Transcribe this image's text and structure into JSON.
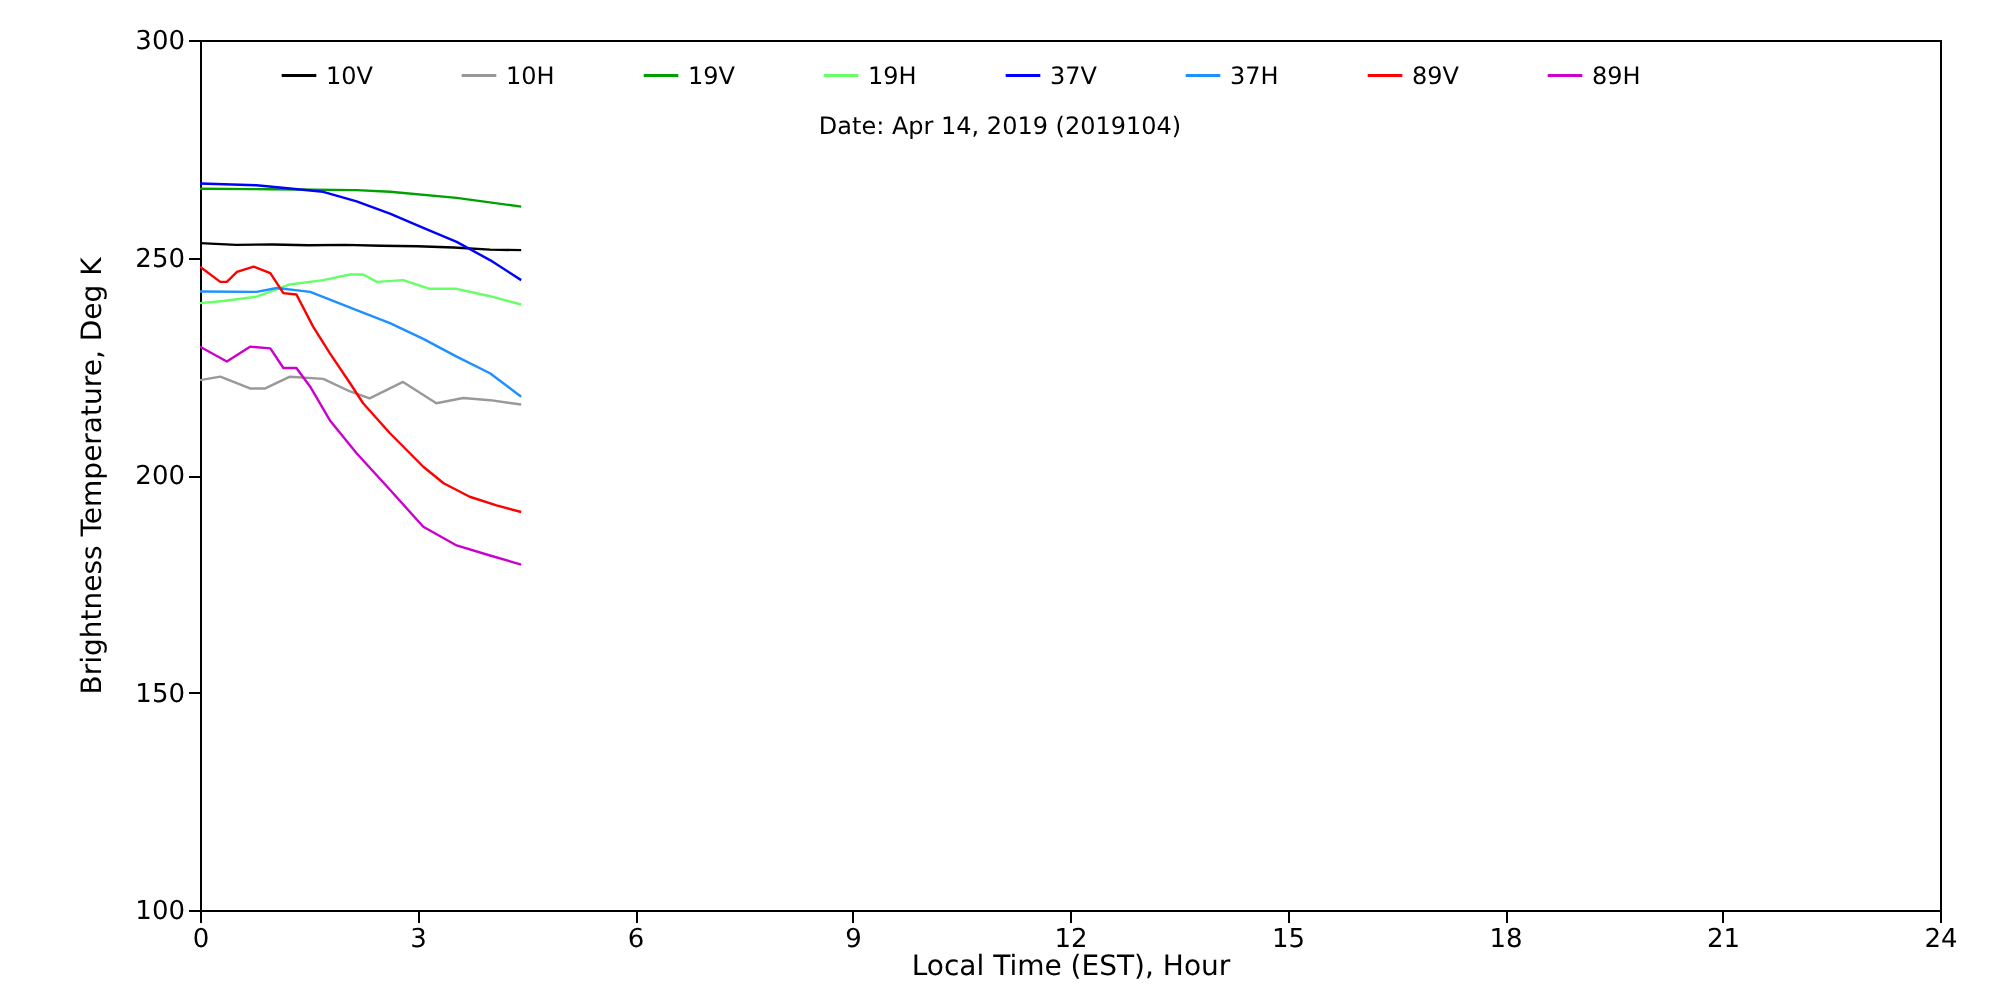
{
  "chart_data": {
    "type": "line",
    "xlabel": "Local Time (EST), Hour",
    "ylabel": "Brightness Temperature, Deg K",
    "annotations": [
      "Date: Apr 14, 2019 (2019104)"
    ],
    "xlim": [
      0,
      24
    ],
    "xticks": [
      0,
      3,
      6,
      9,
      12,
      15,
      18,
      21,
      24
    ],
    "ylim": [
      100,
      300
    ],
    "yticks": [
      100,
      150,
      200,
      250,
      300
    ],
    "legend": "top",
    "grid": false,
    "line_style": "solid",
    "marker": "none",
    "series": [
      {
        "name": "10V",
        "color": "#000000",
        "x": [
          0,
          0.5,
          1,
          1.5,
          2,
          2.5,
          3,
          3.5,
          4,
          4.43
        ],
        "values": [
          253.3,
          252.9,
          253,
          252.8,
          252.9,
          252.7,
          252.6,
          252.3,
          251.8,
          251.7
        ]
      },
      {
        "name": "10H",
        "color": "#999999",
        "x": [
          0,
          0.28,
          0.69,
          0.9,
          1.24,
          1.7,
          2.07,
          2.34,
          2.8,
          3.26,
          3.63,
          4,
          4.43
        ],
        "values": [
          221.8,
          222.6,
          219.9,
          219.9,
          222.6,
          222.1,
          219.2,
          217.6,
          221.4,
          216.5,
          217.7,
          217.2,
          216.2
        ]
      },
      {
        "name": "19V",
        "color": "#00a000",
        "x": [
          0,
          1,
          2.16,
          2.62,
          3.54,
          4.43
        ],
        "values": [
          265.8,
          265.7,
          265.5,
          265.1,
          263.7,
          261.7
        ]
      },
      {
        "name": "19H",
        "color": "#66ff66",
        "x": [
          0,
          0.32,
          0.78,
          1.24,
          1.7,
          2.07,
          2.25,
          2.44,
          2.8,
          3.17,
          3.54,
          4,
          4.43
        ],
        "values": [
          239.5,
          240,
          241,
          243.8,
          244.8,
          246.1,
          246.1,
          244.4,
          244.8,
          242.8,
          242.8,
          241.1,
          239.2
        ]
      },
      {
        "name": "37V",
        "color": "#0000ff",
        "x": [
          0,
          0.78,
          1.7,
          2.16,
          2.62,
          3.08,
          3.54,
          4,
          4.43
        ],
        "values": [
          267,
          266.6,
          265.1,
          262.9,
          260.1,
          256.8,
          253.6,
          249.4,
          244.8
        ]
      },
      {
        "name": "37H",
        "color": "#1e90ff",
        "x": [
          0,
          0.78,
          1.06,
          1.52,
          2.16,
          2.62,
          3.08,
          3.54,
          4,
          4.43
        ],
        "values": [
          242.2,
          242.1,
          243,
          242.1,
          237.9,
          234.9,
          231.3,
          227.2,
          223.4,
          218
        ]
      },
      {
        "name": "89V",
        "color": "#ff0000",
        "x": [
          0,
          0.28,
          0.37,
          0.51,
          0.74,
          0.97,
          1.15,
          1.33,
          1.56,
          1.79,
          2.07,
          2.25,
          2.62,
          3.08,
          3.36,
          3.72,
          4.09,
          4.43
        ],
        "values": [
          247.9,
          244.4,
          244.4,
          246.7,
          247.9,
          246.4,
          241.8,
          241.5,
          234.1,
          228,
          221.1,
          216.5,
          209.6,
          201.9,
          198.1,
          195,
          193,
          191.5
        ]
      },
      {
        "name": "89H",
        "color": "#cc00cc",
        "x": [
          0,
          0.37,
          0.69,
          0.97,
          1.15,
          1.33,
          1.52,
          1.79,
          2.16,
          2.62,
          3.08,
          3.54,
          4,
          4.43
        ],
        "values": [
          229.5,
          226.1,
          229.5,
          229.1,
          224.6,
          224.6,
          220.3,
          212.6,
          205,
          196.6,
          188.1,
          183.8,
          181.5,
          179.4
        ]
      }
    ]
  }
}
